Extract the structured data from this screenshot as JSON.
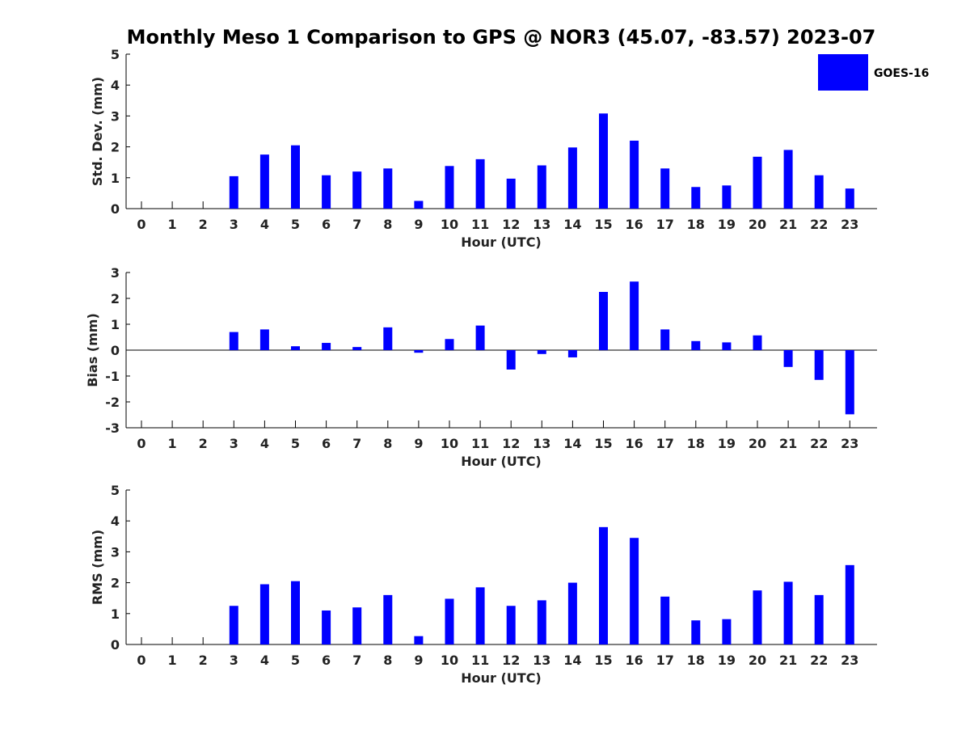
{
  "title": "Monthly Meso 1 Comparison to GPS @ NOR3 (45.07, -83.57) 2023-07",
  "legend": {
    "label": "GOES-16",
    "color": "#0000ff",
    "placement": "top-right"
  },
  "chart_data": [
    {
      "type": "bar",
      "xlabel": "Hour (UTC)",
      "ylabel": "Std. Dev. (mm)",
      "ylim": [
        0,
        5
      ],
      "yticks": [
        "0",
        "1",
        "2",
        "3",
        "4",
        "5"
      ],
      "categories": [
        "0",
        "1",
        "2",
        "3",
        "4",
        "5",
        "6",
        "7",
        "8",
        "9",
        "10",
        "11",
        "12",
        "13",
        "14",
        "15",
        "16",
        "17",
        "18",
        "19",
        "20",
        "21",
        "22",
        "23"
      ],
      "series": [
        {
          "name": "GOES-16",
          "color": "#0000ff",
          "values": [
            null,
            null,
            null,
            1.05,
            1.75,
            2.05,
            1.08,
            1.2,
            1.3,
            0.25,
            1.38,
            1.6,
            0.97,
            1.4,
            1.98,
            3.08,
            2.2,
            1.3,
            0.7,
            0.75,
            1.68,
            1.9,
            1.08,
            0.65
          ]
        }
      ]
    },
    {
      "type": "bar",
      "xlabel": "Hour (UTC)",
      "ylabel": "Bias (mm)",
      "ylim": [
        -3,
        3
      ],
      "yticks": [
        "-3",
        "-2",
        "-1",
        "0",
        "1",
        "2",
        "3"
      ],
      "categories": [
        "0",
        "1",
        "2",
        "3",
        "4",
        "5",
        "6",
        "7",
        "8",
        "9",
        "10",
        "11",
        "12",
        "13",
        "14",
        "15",
        "16",
        "17",
        "18",
        "19",
        "20",
        "21",
        "22",
        "23"
      ],
      "series": [
        {
          "name": "GOES-16",
          "color": "#0000ff",
          "values": [
            null,
            null,
            null,
            0.7,
            0.8,
            0.15,
            0.28,
            0.12,
            0.88,
            -0.1,
            0.43,
            0.95,
            -0.75,
            -0.15,
            -0.28,
            2.25,
            2.65,
            0.8,
            0.35,
            0.3,
            0.57,
            -0.65,
            -1.15,
            -2.48
          ]
        }
      ]
    },
    {
      "type": "bar",
      "xlabel": "Hour (UTC)",
      "ylabel": "RMS (mm)",
      "ylim": [
        0,
        5
      ],
      "yticks": [
        "0",
        "1",
        "2",
        "3",
        "4",
        "5"
      ],
      "categories": [
        "0",
        "1",
        "2",
        "3",
        "4",
        "5",
        "6",
        "7",
        "8",
        "9",
        "10",
        "11",
        "12",
        "13",
        "14",
        "15",
        "16",
        "17",
        "18",
        "19",
        "20",
        "21",
        "22",
        "23"
      ],
      "series": [
        {
          "name": "GOES-16",
          "color": "#0000ff",
          "values": [
            null,
            null,
            null,
            1.25,
            1.95,
            2.05,
            1.1,
            1.2,
            1.6,
            0.27,
            1.48,
            1.85,
            1.25,
            1.43,
            2.0,
            3.8,
            3.45,
            1.55,
            0.78,
            0.82,
            1.75,
            2.03,
            1.6,
            2.57
          ]
        }
      ]
    }
  ]
}
